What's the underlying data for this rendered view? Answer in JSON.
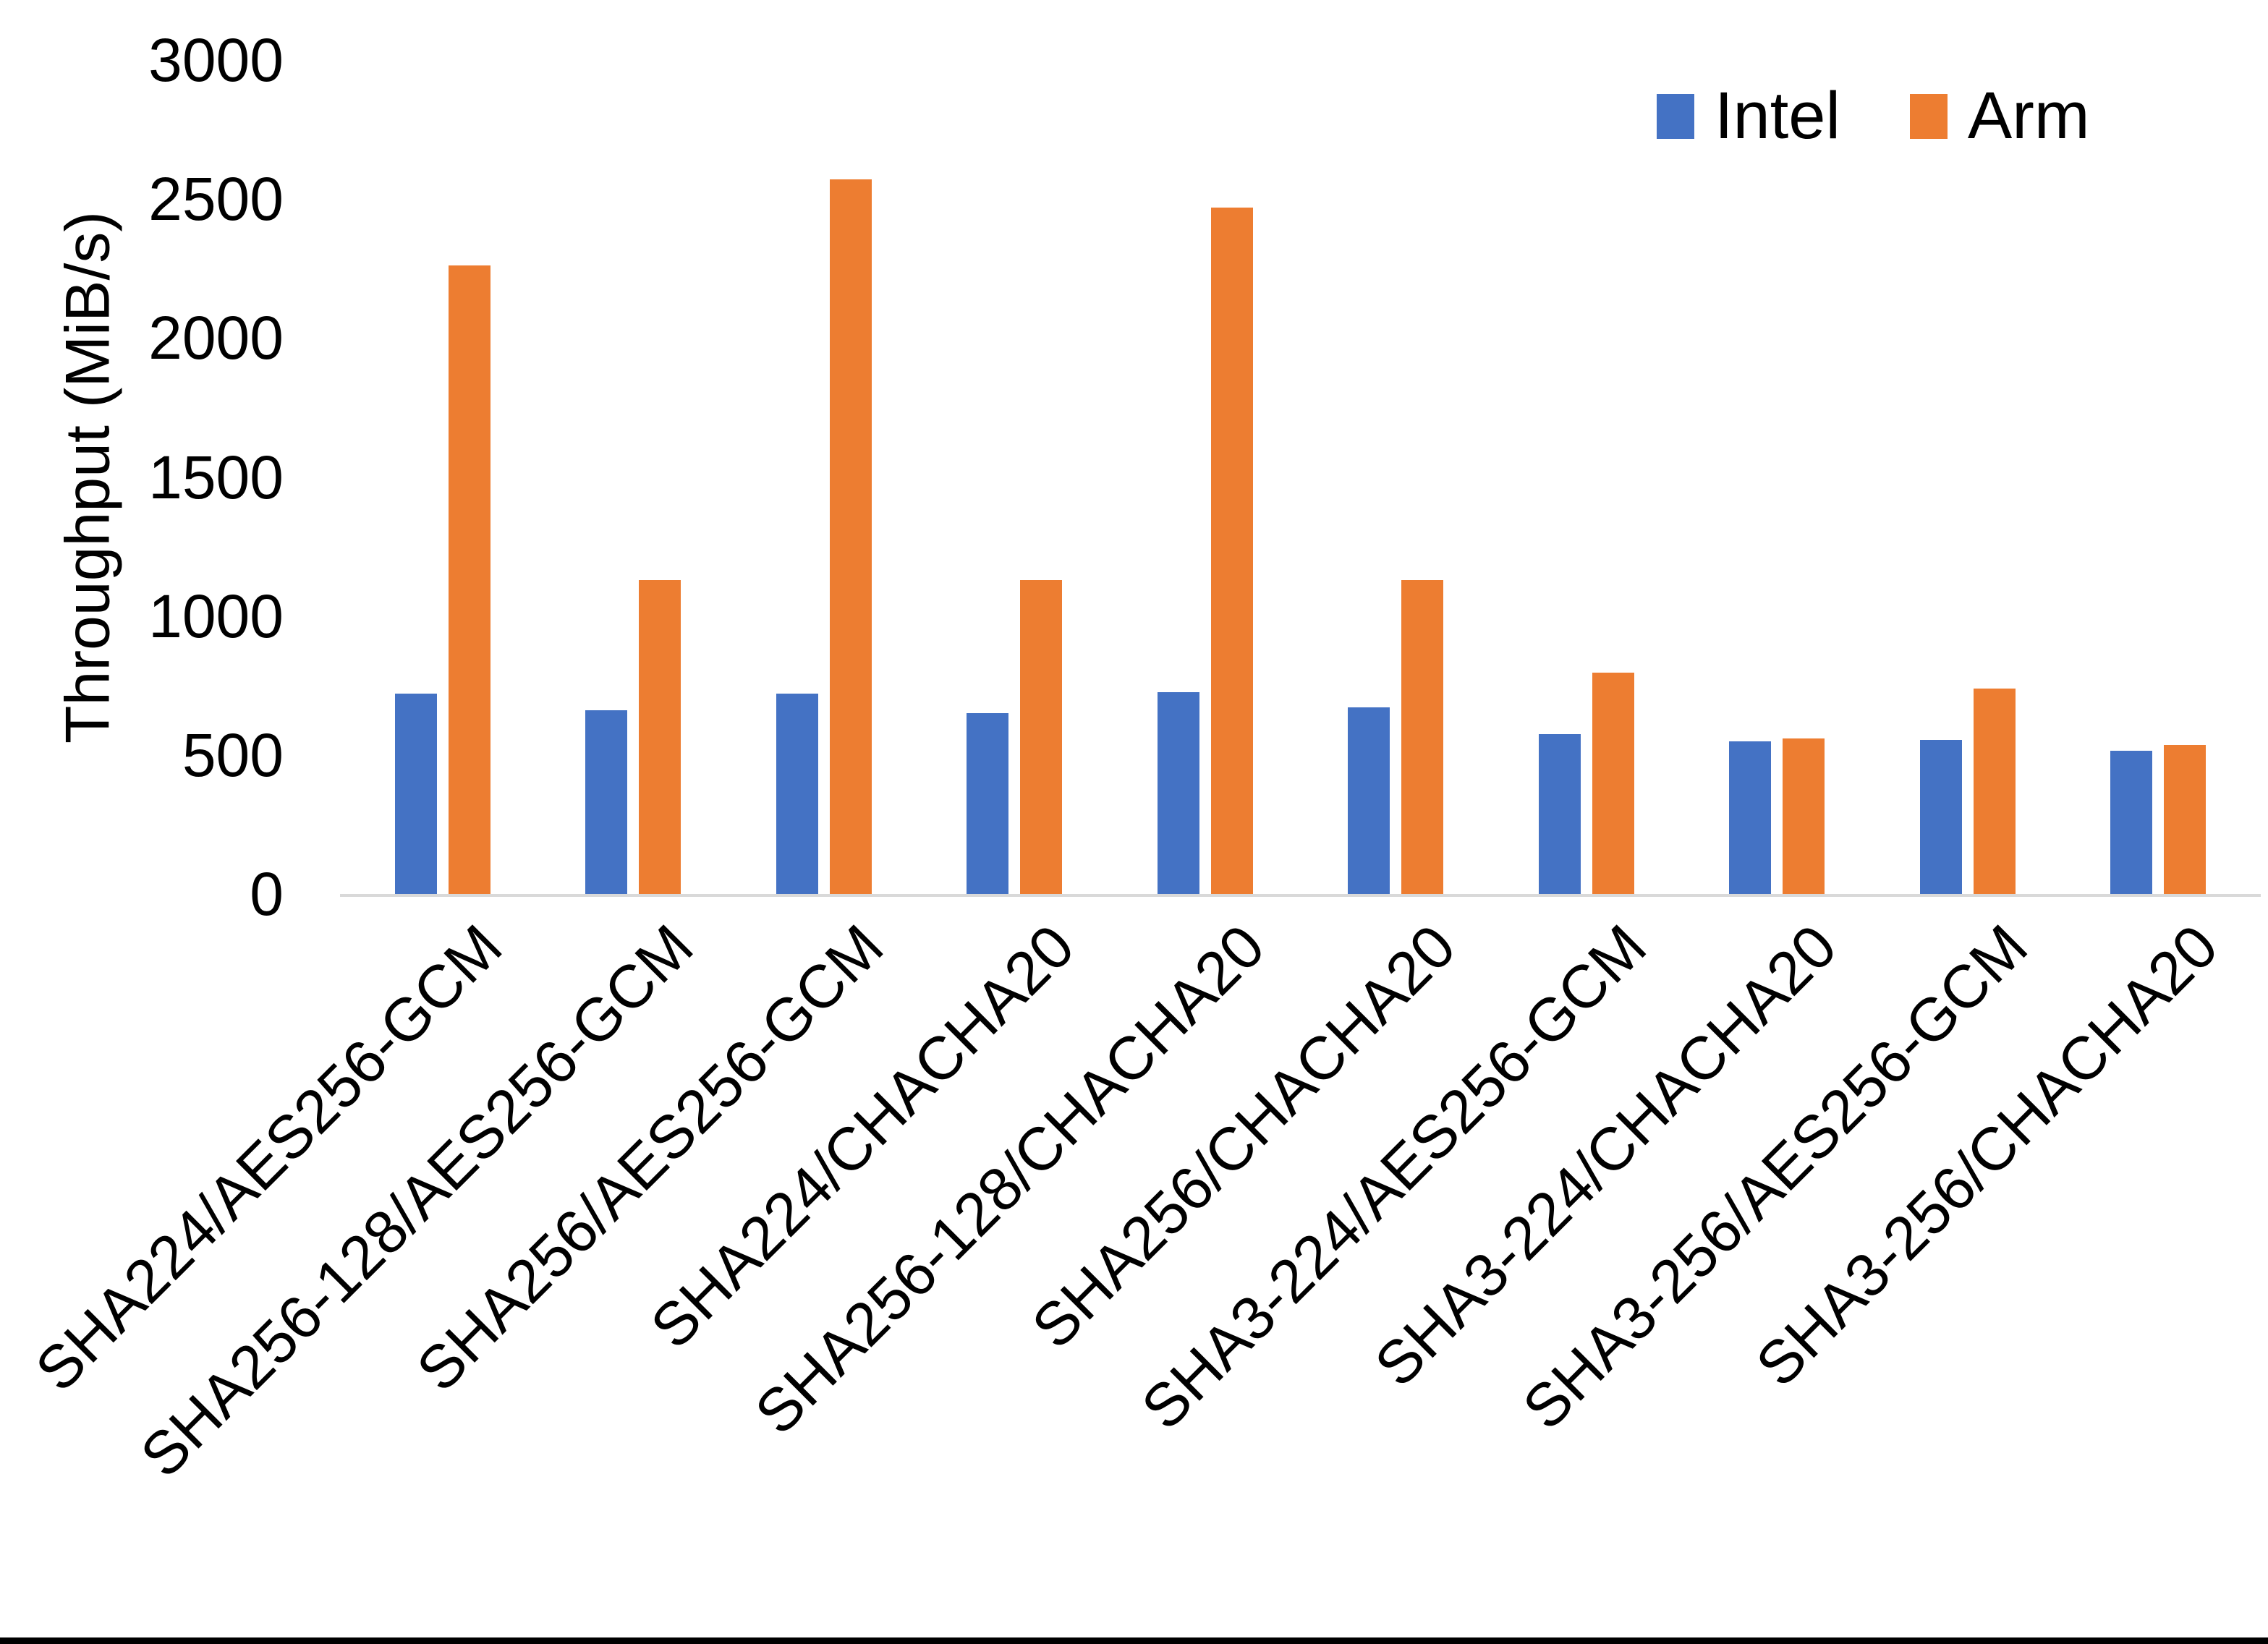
{
  "chart_data": {
    "type": "bar",
    "title": "",
    "ylabel": "Throughput (MiB/s)",
    "xlabel": "",
    "ylim": [
      0,
      3000
    ],
    "yticks": [
      0,
      500,
      1000,
      1500,
      2000,
      2500,
      3000
    ],
    "grid": false,
    "legend_position": "top-right",
    "categories": [
      "SHA224/AES256-GCM",
      "SHA256-128/AES256-GCM",
      "SHA256/AES256-GCM",
      "SHA224/CHACHA20",
      "SHA256-128/CHACHA20",
      "SHA256/CHACHA20",
      "SHA3-224/AES256-GCM",
      "SHA3-224/CHACHA20",
      "SHA3-256/AES256-GCM",
      "SHA3-256/CHACHA20"
    ],
    "series": [
      {
        "name": "Intel",
        "color": "#4472C4",
        "values": [
          720,
          660,
          720,
          650,
          725,
          670,
          575,
          550,
          555,
          515
        ]
      },
      {
        "name": "Arm",
        "color": "#ED7D31",
        "values": [
          2260,
          1130,
          2570,
          1130,
          2470,
          1130,
          795,
          560,
          740,
          535
        ]
      }
    ]
  },
  "colors": {
    "background": "#FFFFFF",
    "axis_line": "#D9D9D9",
    "text": "#000000",
    "bottom_bar": "#000000"
  }
}
